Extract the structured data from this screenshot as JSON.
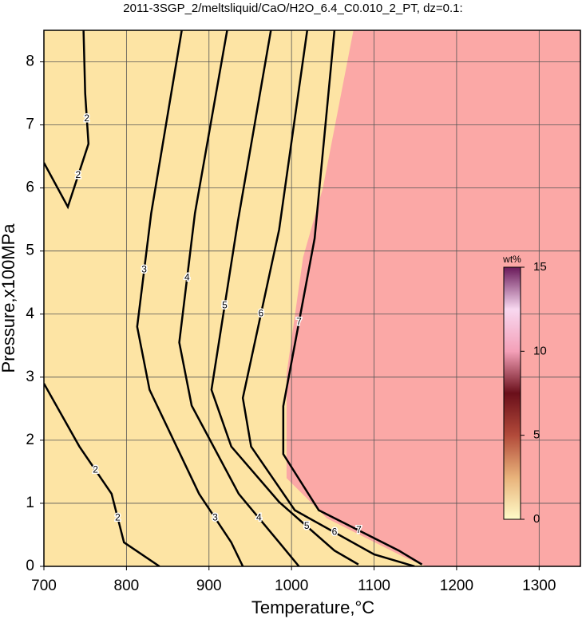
{
  "chart_data": {
    "type": "contour",
    "title": "2011-3SGP_2/meltsliquid/CaO/H2O_6.4_C0.010_2_PT, dz=0.1:",
    "x_label": "Temperature,°C",
    "y_label": "Pressure,x100MPa",
    "xlim": [
      700,
      1350
    ],
    "ylim": [
      0,
      8.5
    ],
    "xticks": [
      700,
      800,
      900,
      1000,
      1100,
      1200,
      1300
    ],
    "yticks": [
      0,
      1,
      2,
      3,
      4,
      5,
      6,
      7,
      8
    ],
    "grid": true,
    "background": "#fde4a4",
    "saturated_region": {
      "color": "#fba8a6",
      "x": [
        1075,
        1038,
        1014,
        994,
        994,
        1043,
        1139,
        1163,
        1350,
        1350
      ],
      "y": [
        8.5,
        6,
        4.9,
        3.05,
        1.4,
        0.76,
        0.13,
        0,
        0,
        8.5
      ]
    },
    "contours": [
      {
        "level": 2,
        "x": [
          748,
          750,
          754,
          729,
          700
        ],
        "y": [
          8.5,
          7.5,
          6.7,
          5.7,
          6.4
        ]
      },
      {
        "level": 2,
        "x": [
          700,
          743,
          782,
          797,
          840
        ],
        "y": [
          2.9,
          1.9,
          1.15,
          0.38,
          0
        ]
      },
      {
        "level": 3,
        "x": [
          867,
          830,
          813,
          828,
          888,
          927,
          941
        ],
        "y": [
          8.5,
          5.6,
          3.8,
          2.8,
          1.15,
          0.38,
          0
        ]
      },
      {
        "level": 4,
        "x": [
          922,
          883,
          864,
          879,
          936,
          985,
          1009
        ],
        "y": [
          8.5,
          5.6,
          3.55,
          2.55,
          1.15,
          0.38,
          0
        ]
      },
      {
        "level": 5,
        "x": [
          975,
          935,
          903,
          927,
          985,
          1052,
          1081
        ],
        "y": [
          8.5,
          5.47,
          2.8,
          1.9,
          1.02,
          0.25,
          0.03
        ]
      },
      {
        "level": 6,
        "x": [
          1019,
          985,
          941,
          951,
          1004,
          1100,
          1149
        ],
        "y": [
          8.5,
          5.34,
          2.67,
          1.9,
          0.89,
          0.19,
          0
        ]
      },
      {
        "level": 7,
        "x": [
          1052,
          1028,
          990,
          990,
          1033,
          1130,
          1158
        ],
        "y": [
          8.5,
          5.2,
          2.54,
          1.78,
          0.89,
          0.25,
          0.03
        ]
      }
    ],
    "colorbar": {
      "label": "wt%",
      "lim": [
        0,
        15
      ],
      "ticks": [
        0,
        5,
        10,
        15
      ],
      "colors": [
        "#fffbc8",
        "#e8b27a",
        "#b24a3a",
        "#6a0f1a",
        "#f4a0b8",
        "#f8d8f0",
        "#6a1a5a"
      ]
    }
  }
}
